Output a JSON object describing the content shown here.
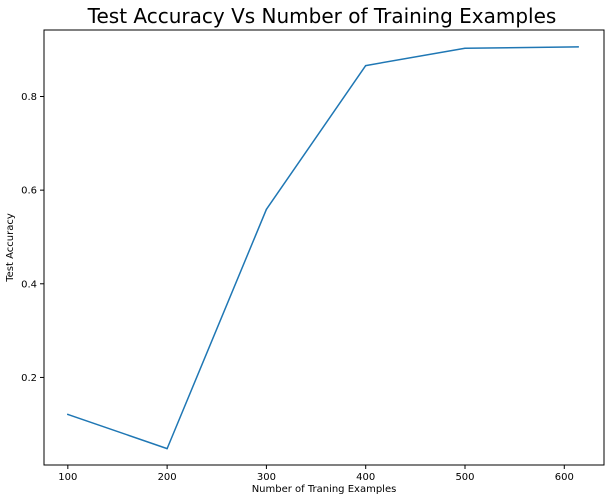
{
  "chart_data": {
    "type": "line",
    "title": "Test Accuracy Vs Number of Training Examples",
    "xlabel": "Number of Traning Examples",
    "ylabel": "Test Accuracy",
    "x": [
      100,
      200,
      300,
      400,
      500,
      614
    ],
    "series": [
      {
        "values": [
          0.121,
          0.048,
          0.559,
          0.866,
          0.903,
          0.906
        ],
        "color": "#1f77b4"
      }
    ],
    "xlim": [
      76,
      640
    ],
    "ylim": [
      0.013,
      0.942
    ],
    "xticks": [
      100,
      200,
      300,
      400,
      500,
      600
    ],
    "yticks": [
      0.2,
      0.4,
      0.6,
      0.8
    ],
    "grid": false,
    "legend": "none"
  }
}
